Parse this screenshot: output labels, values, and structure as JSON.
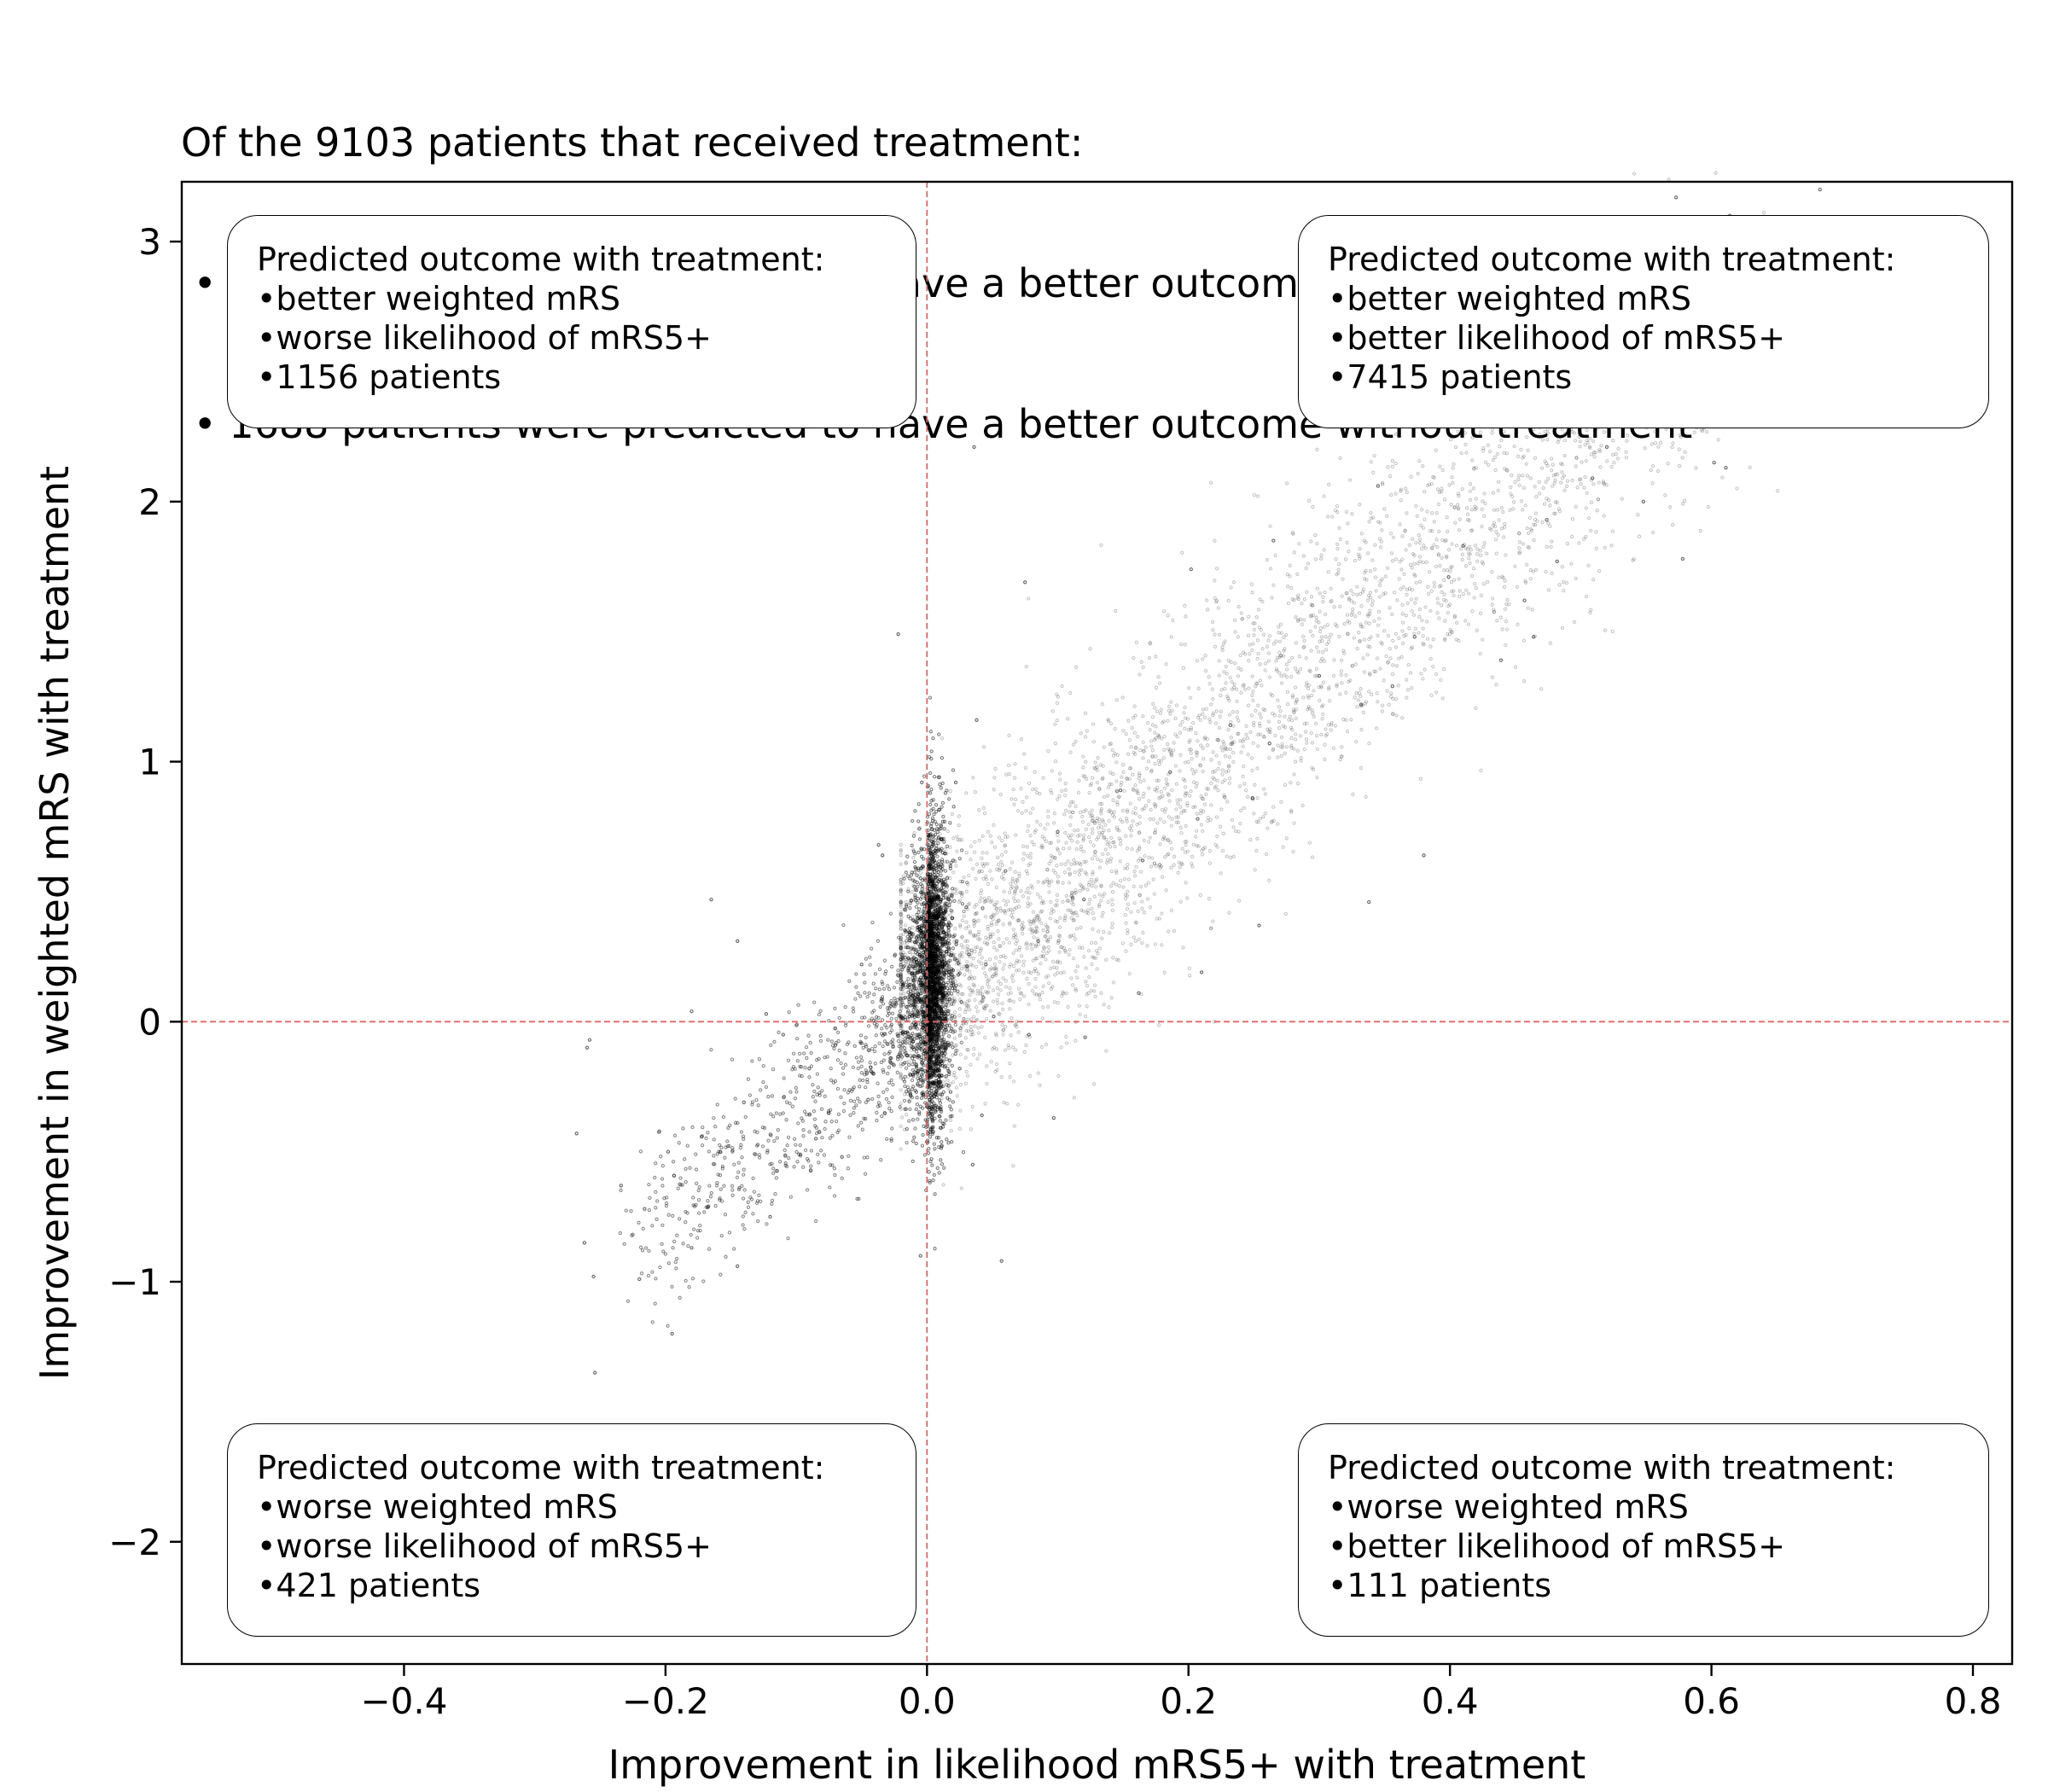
{
  "title_lines": [
    "Of the 9103 patients that received treatment:",
    " • 7415 patients were predicted to have a better outcome with treatment",
    " • 1688 patients were predicted to have a better outcome without treatment"
  ],
  "quadrants": {
    "top_left": {
      "heading": "Predicted outcome with treatment:",
      "lines": [
        "•better weighted mRS",
        "•worse likelihood of mRS5+",
        "•1156 patients"
      ]
    },
    "top_right": {
      "heading": "Predicted outcome with treatment:",
      "lines": [
        "•better weighted mRS",
        "•better likelihood of mRS5+",
        "•7415 patients"
      ]
    },
    "bottom_left": {
      "heading": "Predicted outcome with treatment:",
      "lines": [
        "•worse weighted mRS",
        "•worse likelihood of mRS5+",
        "•421 patients"
      ]
    },
    "bottom_right": {
      "heading": "Predicted outcome with treatment:",
      "lines": [
        "•worse weighted mRS",
        "•better likelihood of mRS5+",
        "•111 patients"
      ]
    }
  },
  "chart_data": {
    "type": "scatter",
    "xlabel": "Improvement in likelihood mRS5+ with treatment",
    "ylabel": "Improvement in weighted mRS with treatment",
    "xlim": [
      -0.57,
      0.83
    ],
    "ylim": [
      -2.47,
      3.23
    ],
    "xticks": [
      -0.4,
      -0.2,
      0.0,
      0.2,
      0.4,
      0.6,
      0.8
    ],
    "xtick_labels": [
      "−0.4",
      "−0.2",
      "0.0",
      "0.2",
      "0.4",
      "0.6",
      "0.8"
    ],
    "yticks": [
      -2,
      -1,
      0,
      1,
      2,
      3
    ],
    "ytick_labels": [
      "−2",
      "−1",
      "0",
      "1",
      "2",
      "3"
    ],
    "reference_lines": {
      "x": 0,
      "y": 0,
      "style": "dashed",
      "color": "#e06666"
    },
    "point_color": "#000000",
    "grid": false,
    "legend": "none",
    "series": [
      {
        "points": [
          [
            0.683,
            3.2
          ],
          [
            0.614,
            3.1
          ],
          [
            0.573,
            3.17
          ],
          [
            0.762,
            2.67
          ],
          [
            0.655,
            2.47
          ],
          [
            0.611,
            2.13
          ],
          [
            0.602,
            2.15
          ],
          [
            0.548,
            2.0
          ],
          [
            0.509,
            2.09
          ],
          [
            0.482,
            1.77
          ],
          [
            0.474,
            1.93
          ],
          [
            0.457,
            1.62
          ],
          [
            0.439,
            1.39
          ],
          [
            0.41,
            1.83
          ],
          [
            0.399,
            1.71
          ],
          [
            0.373,
            1.48
          ],
          [
            0.356,
            1.29
          ],
          [
            0.332,
            1.22
          ],
          [
            0.3,
            1.33
          ],
          [
            0.262,
            1.07
          ],
          [
            0.249,
            0.86
          ],
          [
            0.232,
            1.14
          ],
          [
            0.207,
            0.78
          ],
          [
            0.186,
            0.96
          ],
          [
            0.165,
            0.62
          ],
          [
            0.148,
            0.89
          ],
          [
            0.12,
            0.47
          ],
          [
            0.1,
            0.73
          ],
          [
            0.085,
            0.31
          ],
          [
            0.06,
            0.58
          ],
          [
            0.045,
            0.22
          ],
          [
            0.03,
            0.44
          ],
          [
            0.017,
            0.12
          ],
          [
            0.008,
            0.33
          ],
          [
            0.004,
            0.05
          ],
          [
            0.012,
            0.65
          ],
          [
            0.022,
            0.92
          ],
          [
            0.038,
            1.16
          ],
          [
            0.036,
            2.21
          ],
          [
            0.075,
            1.69
          ],
          [
            0.202,
            1.74
          ],
          [
            0.265,
            1.85
          ],
          [
            0.345,
            2.06
          ],
          [
            0.386,
            2.43
          ],
          [
            0.461,
            2.34
          ],
          [
            0.52,
            2.21
          ],
          [
            0.578,
            1.78
          ],
          [
            0.464,
            1.48
          ],
          [
            0.38,
            0.64
          ],
          [
            0.338,
            0.46
          ],
          [
            0.254,
            0.37
          ],
          [
            0.21,
            0.19
          ],
          [
            0.162,
            0.11
          ],
          [
            0.121,
            -0.06
          ],
          [
            0.097,
            -0.37
          ],
          [
            0.078,
            -0.05
          ],
          [
            0.051,
            0.02
          ],
          [
            0.057,
            -0.92
          ],
          [
            -0.005,
            -0.9
          ],
          [
            -0.034,
            0.64
          ],
          [
            -0.037,
            0.68
          ],
          [
            -0.022,
            1.49
          ],
          [
            -0.004,
            0.92
          ],
          [
            -0.012,
            0.34
          ],
          [
            -0.02,
            0.18
          ],
          [
            -0.035,
            0.08
          ],
          [
            -0.05,
            0.22
          ],
          [
            -0.07,
            -0.09
          ],
          [
            -0.09,
            -0.18
          ],
          [
            -0.11,
            -0.05
          ],
          [
            -0.14,
            -0.31
          ],
          [
            -0.172,
            -0.44
          ],
          [
            -0.198,
            -0.5
          ],
          [
            -0.216,
            -0.72
          ],
          [
            -0.234,
            -0.63
          ],
          [
            -0.26,
            -0.1
          ],
          [
            -0.258,
            -0.07
          ],
          [
            -0.268,
            -0.43
          ],
          [
            -0.262,
            -0.85
          ],
          [
            -0.255,
            -0.98
          ],
          [
            -0.22,
            -0.99
          ],
          [
            -0.18,
            -0.87
          ],
          [
            -0.195,
            -1.2
          ],
          [
            -0.254,
            -1.35
          ],
          [
            -0.145,
            -0.94
          ],
          [
            -0.12,
            -0.75
          ],
          [
            -0.165,
            0.47
          ],
          [
            -0.145,
            0.31
          ],
          [
            -0.18,
            0.04
          ],
          [
            -0.123,
            0.03
          ],
          [
            -0.085,
            -0.45
          ],
          [
            -0.065,
            -0.52
          ],
          [
            -0.045,
            -0.3
          ],
          [
            -0.028,
            -0.14
          ],
          [
            -0.015,
            -0.04
          ],
          [
            0.006,
            -0.03
          ],
          [
            0.025,
            -0.18
          ],
          [
            0.042,
            -0.36
          ],
          [
            0.035,
            -0.55
          ],
          [
            0.018,
            -0.27
          ]
        ]
      }
    ]
  }
}
